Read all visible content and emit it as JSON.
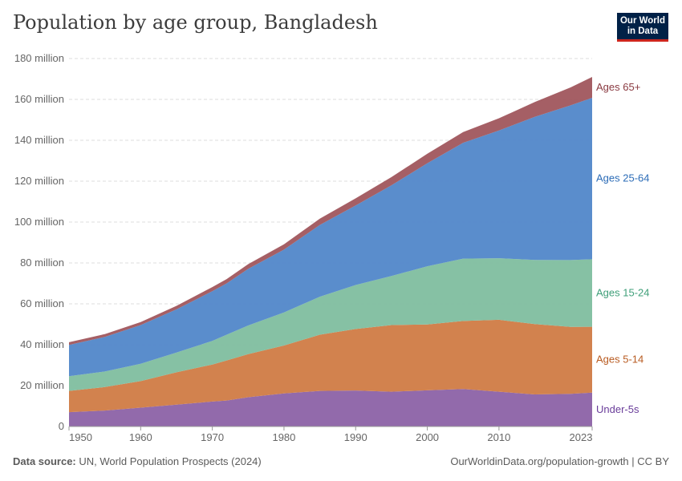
{
  "title": "Population by age group, Bangladesh",
  "logo": {
    "line1": "Our World",
    "line2": "in Data"
  },
  "footer": {
    "source_label": "Data source:",
    "source_text": "UN, World Population Prospects (2024)",
    "link": "OurWorldinData.org/population-growth | CC BY"
  },
  "chart_data": {
    "type": "area",
    "stacked": true,
    "x": [
      1950,
      1955,
      1960,
      1965,
      1970,
      1972,
      1975,
      1980,
      1985,
      1990,
      1995,
      2000,
      2005,
      2010,
      2015,
      2020,
      2023
    ],
    "series": [
      {
        "name": "Under-5s",
        "color": "#8c62a6",
        "values": [
          7,
          7.8,
          9.2,
          10.7,
          12.2,
          12.7,
          14.3,
          16.2,
          17.4,
          17.6,
          17.0,
          17.7,
          18.3,
          17.0,
          15.7,
          16.0,
          16.6
        ]
      },
      {
        "name": "Ages 5-14",
        "color": "#d07b44",
        "values": [
          10.4,
          11.5,
          13.0,
          15.8,
          18.1,
          19.6,
          21.1,
          23.4,
          27.5,
          30.1,
          32.6,
          32.2,
          33.3,
          35.2,
          34.4,
          32.7,
          32.2
        ]
      },
      {
        "name": "Ages 15-24",
        "color": "#7fbe9f",
        "values": [
          7.2,
          7.6,
          8.5,
          9.7,
          11.6,
          12.6,
          14.0,
          16.2,
          18.6,
          21.5,
          24.0,
          28.5,
          30.5,
          30.1,
          31.4,
          32.7,
          33.0
        ]
      },
      {
        "name": "Ages 25-64",
        "color": "#5187c9",
        "values": [
          15.3,
          16.9,
          18.9,
          21.1,
          24.3,
          25.1,
          27.7,
          30.7,
          35.1,
          38.9,
          44.4,
          50.4,
          56.7,
          62.5,
          70.0,
          75.7,
          79.0
        ]
      },
      {
        "name": "Ages 65+",
        "color": "#a0565d",
        "values": [
          1.3,
          1.4,
          1.5,
          1.7,
          2.0,
          2.1,
          2.3,
          2.6,
          3.1,
          3.5,
          4.0,
          4.6,
          5.2,
          6.0,
          7.2,
          8.8,
          10.2
        ]
      }
    ],
    "label_colors": [
      "#6a3d9a",
      "#b85b21",
      "#3f9f79",
      "#2c6cb7",
      "#8a3a41"
    ],
    "y_ticks": [
      0,
      20,
      40,
      60,
      80,
      100,
      120,
      140,
      160,
      180
    ],
    "y_tick_labels": [
      "0",
      "20 million",
      "40 million",
      "60 million",
      "80 million",
      "100 million",
      "120 million",
      "140 million",
      "160 million",
      "180 million"
    ],
    "x_ticks": [
      1950,
      1960,
      1970,
      1980,
      1990,
      2000,
      2010,
      2023
    ],
    "x_tick_labels": [
      "1950",
      "1960",
      "1970",
      "1980",
      "1990",
      "2000",
      "2010",
      "2023"
    ],
    "series_labels": [
      "Under-5s",
      "Ages 5-14",
      "Ages 15-24",
      "Ages 25-64",
      "Ages 65+"
    ],
    "xlim": [
      1950,
      2023
    ],
    "ylim": [
      0,
      180
    ],
    "grid": true,
    "legend": "right, inline labels"
  }
}
